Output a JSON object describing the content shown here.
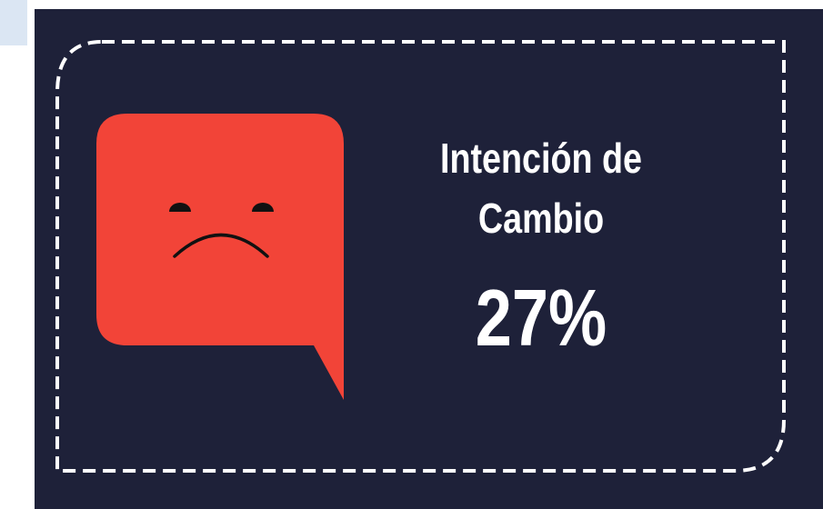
{
  "card": {
    "title_lines": [
      "Intención de",
      "Cambio"
    ],
    "value": "27%"
  }
}
